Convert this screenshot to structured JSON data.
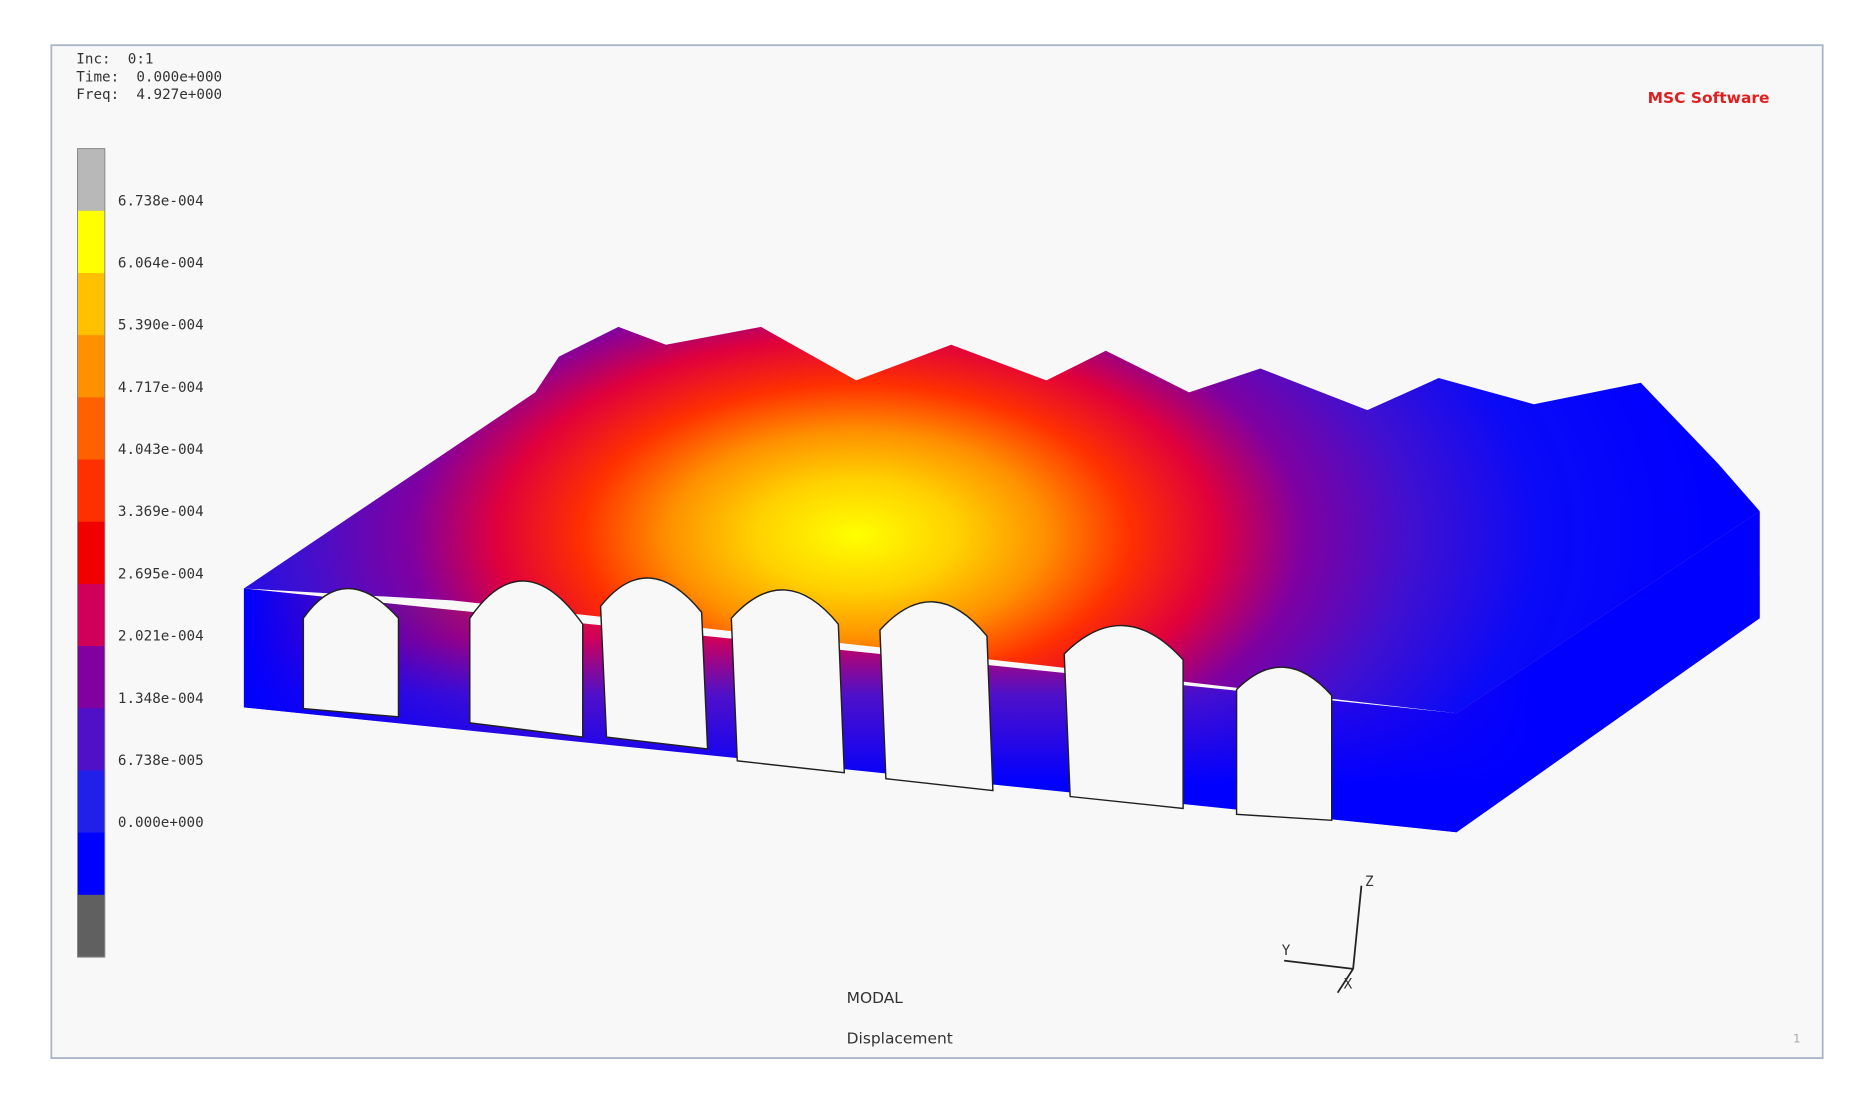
{
  "header": {
    "lines": [
      "Inc:  0:1",
      "Time:  0.000e+000",
      "Freq:  4.927e+000"
    ],
    "logo": "MSC Software"
  },
  "legend": {
    "labels": [
      "6.738e-004",
      "6.064e-004",
      "5.390e-004",
      "4.717e-004",
      "4.043e-004",
      "3.369e-004",
      "2.695e-004",
      "2.021e-004",
      "1.348e-004",
      "6.738e-005",
      "0.000e+000"
    ],
    "colors": [
      "#b8b8b8",
      "#ffff00",
      "#ffc000",
      "#ff9000",
      "#ff6000",
      "#ff3000",
      "#f00000",
      "#d0005a",
      "#8000a0",
      "#5010c8",
      "#2020e8",
      "#0000ff",
      "#606060"
    ]
  },
  "footer": {
    "line1": "MODAL",
    "line2": "Displacement",
    "page": "1"
  },
  "triad": {
    "z": "Z",
    "y": "Y",
    "x": "X"
  }
}
